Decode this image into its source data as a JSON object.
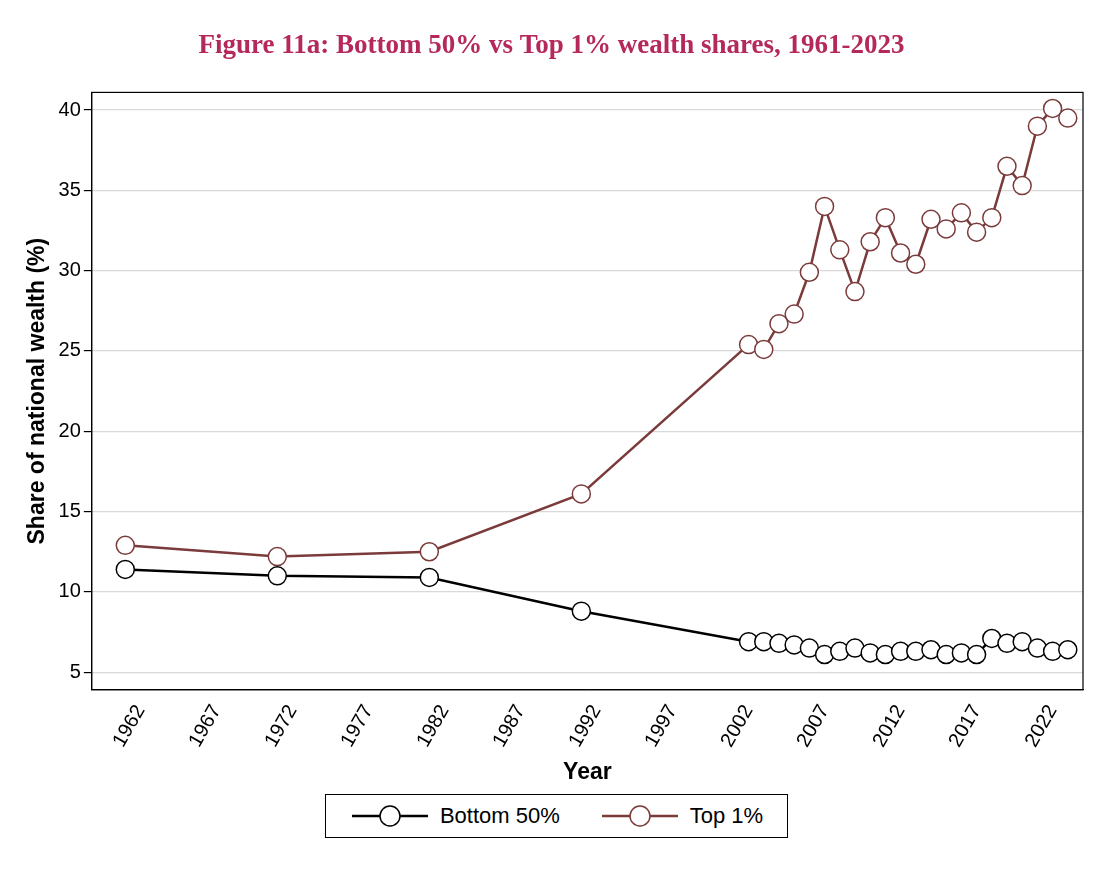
{
  "chart_data": {
    "type": "line",
    "title": "Figure 11a: Bottom 50% vs Top 1% wealth shares, 1961-2023",
    "x_label": "Year",
    "y_label": "Share of national wealth (%)",
    "x": [
      1961,
      1971,
      1981,
      1991,
      2002,
      2003,
      2004,
      2005,
      2006,
      2007,
      2008,
      2009,
      2010,
      2011,
      2012,
      2013,
      2014,
      2015,
      2016,
      2017,
      2018,
      2019,
      2020,
      2021,
      2022,
      2023
    ],
    "series": [
      {
        "name": "Bottom 50%",
        "color": "#000000",
        "marker": "circle",
        "line_style": "solid",
        "values": [
          11.4,
          11.0,
          10.9,
          8.8,
          6.9,
          6.9,
          6.8,
          6.7,
          6.5,
          6.1,
          6.3,
          6.5,
          6.2,
          6.1,
          6.3,
          6.3,
          6.4,
          6.1,
          6.2,
          6.1,
          7.1,
          6.8,
          6.9,
          6.5,
          6.3,
          6.4
        ]
      },
      {
        "name": "Top 1%",
        "color": "#7b3b3b",
        "marker": "circle",
        "line_style": "solid",
        "values": [
          12.9,
          12.2,
          12.5,
          16.1,
          25.4,
          25.1,
          26.7,
          27.3,
          29.9,
          34.0,
          31.3,
          28.7,
          31.8,
          33.3,
          31.1,
          30.4,
          33.2,
          32.6,
          33.6,
          32.4,
          33.3,
          36.5,
          35.3,
          39.0,
          40.1,
          39.5
        ]
      }
    ],
    "xlim": [
      1958.8,
      2024
    ],
    "xticks": [
      1962,
      1967,
      1972,
      1977,
      1982,
      1987,
      1992,
      1997,
      2002,
      2007,
      2012,
      2017,
      2022
    ],
    "ylim": [
      3.9,
      41.1
    ],
    "yticks": [
      5,
      10,
      15,
      20,
      25,
      30,
      35,
      40
    ],
    "grid": true,
    "legend": "bottom"
  }
}
